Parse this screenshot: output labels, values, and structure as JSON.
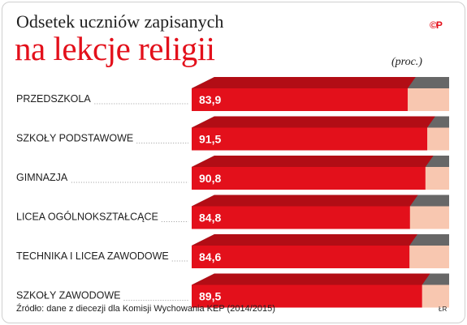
{
  "title_line1": "Odsetek uczniów zapisanych",
  "title_line2": "na lekcje religii",
  "unit": "(proc.)",
  "logo": "©P",
  "source": "Źródło: dane z diecezji dla Komisji Wychowania KEP (2014/2015)",
  "credit": "ŁR",
  "colors": {
    "bar_front": "#e3101b",
    "bar_top": "#b20d15",
    "rest_front": "#f8c7b0",
    "rest_top": "#676767",
    "title_accent": "#e3101b"
  },
  "chart_data": {
    "type": "bar",
    "orientation": "horizontal",
    "title": "Odsetek uczniów zapisanych na lekcje religii",
    "unit": "(proc.)",
    "categories": [
      "PRZEDSZKOLA",
      "SZKOŁY PODSTAWOWE",
      "GIMNAZJA",
      "LICEA OGÓLNOKSZTAŁCĄCE",
      "TECHNIKA I LICEA ZAWODOWE",
      "SZKOŁY ZAWODOWE"
    ],
    "values": [
      83.9,
      91.5,
      90.8,
      84.8,
      84.6,
      89.5
    ],
    "value_labels": [
      "83,9",
      "91,5",
      "90,8",
      "84,8",
      "84,6",
      "89,5"
    ],
    "xlim": [
      0,
      100
    ],
    "grid": false,
    "legend": "none"
  }
}
